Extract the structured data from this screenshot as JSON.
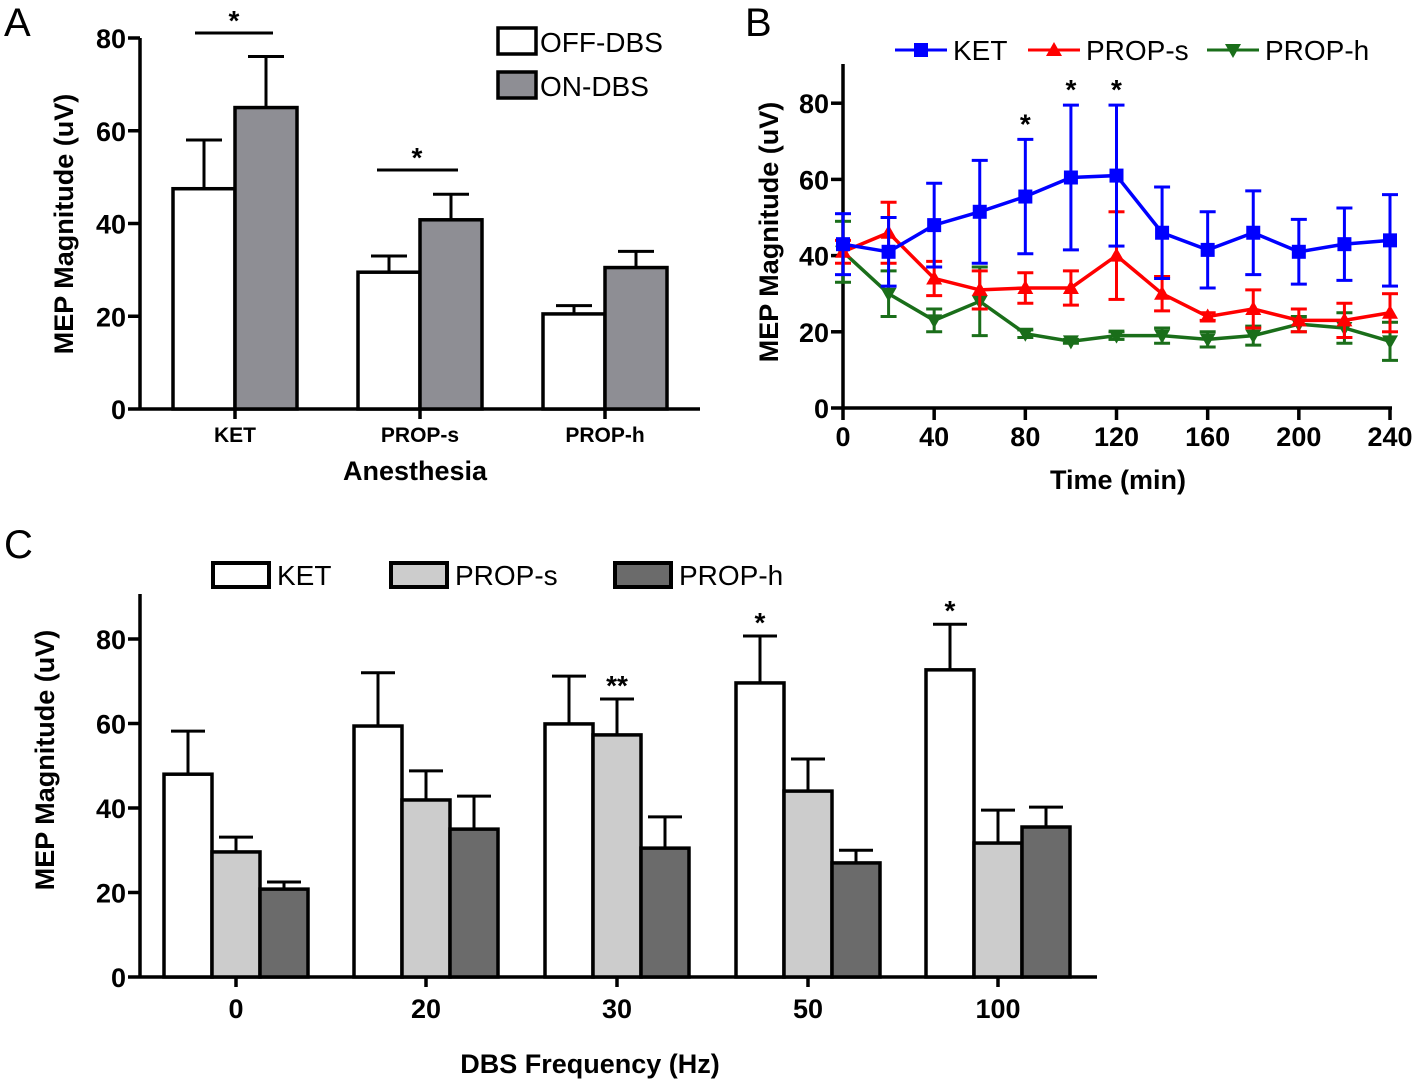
{
  "chart_data": [
    {
      "panel": "A",
      "type": "bar",
      "xlabel": "Anesthesia",
      "ylabel": "MEP Magnitude (uV)",
      "ylim": [
        0,
        80
      ],
      "yticks": [
        0,
        20,
        40,
        60,
        80
      ],
      "categories": [
        "KET",
        "PROP-s",
        "PROP-h"
      ],
      "legend_position": "top-right",
      "series": [
        {
          "name": "OFF-DBS",
          "color": "#ffffff",
          "values": [
            47.5,
            29.5,
            20.5
          ],
          "error": [
            10.5,
            3.5,
            1.8
          ]
        },
        {
          "name": "ON-DBS",
          "color": "#8e8e94",
          "values": [
            65,
            40.8,
            30.5
          ],
          "error": [
            11,
            5.5,
            3.5
          ]
        }
      ],
      "significance": [
        {
          "category": "KET",
          "label": "*"
        },
        {
          "category": "PROP-s",
          "label": "*"
        }
      ]
    },
    {
      "panel": "B",
      "type": "line",
      "xlabel": "Time (min)",
      "ylabel": "MEP Magnitude (uV)",
      "ylim": [
        0,
        90
      ],
      "xlim": [
        0,
        240
      ],
      "yticks": [
        0,
        20,
        40,
        60,
        80
      ],
      "xticks": [
        0,
        40,
        80,
        120,
        160,
        200,
        240
      ],
      "x": [
        0,
        20,
        40,
        60,
        80,
        100,
        120,
        140,
        160,
        180,
        200,
        220,
        240
      ],
      "legend_position": "top",
      "series": [
        {
          "name": "KET",
          "color": "#0000ff",
          "marker": "square",
          "values": [
            43,
            41,
            48,
            51.5,
            55.5,
            60.5,
            61,
            46,
            41.5,
            46,
            41,
            43,
            44
          ],
          "error": [
            8,
            9,
            11,
            13.5,
            15,
            19,
            18.5,
            12,
            10,
            11,
            8.5,
            9.5,
            12
          ]
        },
        {
          "name": "PROP-s",
          "color": "#ff0000",
          "marker": "triangle-up",
          "values": [
            41,
            46,
            34,
            31,
            31.5,
            31.5,
            40,
            30,
            24,
            26,
            23,
            23,
            25
          ],
          "error": [
            3,
            8,
            4.5,
            5,
            4,
            4.5,
            11.5,
            4.5,
            1,
            5,
            3,
            4.5,
            5
          ]
        },
        {
          "name": "PROP-h",
          "color": "#1a6e1a",
          "marker": "triangle-down",
          "values": [
            41,
            30,
            23,
            28,
            19.5,
            17.5,
            19,
            19,
            18,
            19,
            22,
            21,
            17.5
          ],
          "error": [
            8,
            6,
            3,
            9,
            1,
            0.5,
            1,
            2,
            2,
            2.5,
            2,
            4,
            5
          ]
        }
      ],
      "significance": [
        {
          "x": 80,
          "label": "*"
        },
        {
          "x": 100,
          "label": "*"
        },
        {
          "x": 120,
          "label": "*"
        }
      ]
    },
    {
      "panel": "C",
      "type": "bar",
      "xlabel": "DBS Frequency (Hz)",
      "ylabel": "MEP Magnitude (uV)",
      "ylim": [
        0,
        90
      ],
      "yticks": [
        0,
        20,
        40,
        60,
        80
      ],
      "categories": [
        "0",
        "20",
        "30",
        "50",
        "100"
      ],
      "legend_position": "top",
      "series": [
        {
          "name": "KET",
          "color": "#ffffff",
          "values": [
            48,
            59.4,
            59.9,
            69.6,
            72.7
          ],
          "error": [
            10.2,
            12.6,
            11.3,
            11.1,
            10.8
          ]
        },
        {
          "name": "PROP-s",
          "color": "#cccccc",
          "values": [
            29.6,
            41.9,
            57.3,
            44,
            31.7
          ],
          "error": [
            3.5,
            6.9,
            8.5,
            7.6,
            7.8
          ]
        },
        {
          "name": "PROP-h",
          "color": "#6b6b6b",
          "values": [
            20.8,
            35,
            30.5,
            27,
            35.5
          ],
          "error": [
            1.7,
            7.8,
            7.4,
            3,
            4.7
          ]
        }
      ],
      "significance": [
        {
          "category": "30",
          "series": "PROP-s",
          "label": "**"
        },
        {
          "category": "50",
          "series": "KET",
          "label": "*"
        },
        {
          "category": "100",
          "series": "KET",
          "label": "*"
        }
      ]
    }
  ]
}
